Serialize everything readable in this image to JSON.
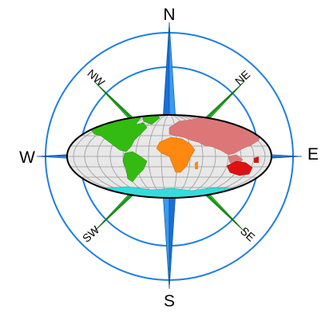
{
  "compass": {
    "labels": {
      "n": "N",
      "s": "S",
      "e": "E",
      "w": "W",
      "ne": "NE",
      "nw": "NW",
      "se": "SE",
      "sw": "SW"
    }
  },
  "colors": {
    "ring": "#1f7fe0",
    "cardinal_point": "#1f7fe0",
    "intercardinal_point": "#1aa81a",
    "ocean": "#e8e8e8",
    "grid": "#9a9a9a",
    "north_america": "#33bb11",
    "south_america": "#33bb11",
    "eurasia": "#dd7777",
    "africa": "#ff8811",
    "australia": "#dd1111",
    "antarctica": "#33dddd"
  },
  "icons": [
    "compass-rose-icon",
    "world-map-icon"
  ]
}
